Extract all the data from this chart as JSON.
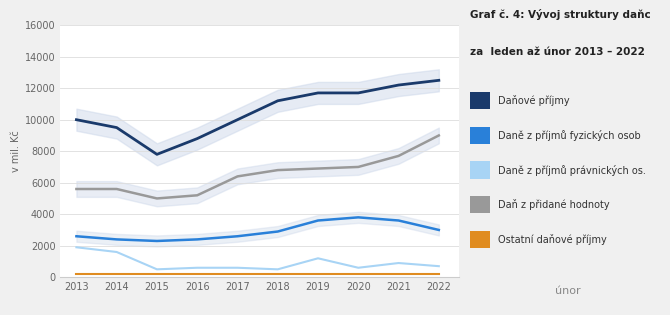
{
  "years": [
    2013,
    2014,
    2015,
    2016,
    2017,
    2018,
    2019,
    2020,
    2021,
    2022
  ],
  "danove_prijmy": [
    10000,
    9500,
    7800,
    8800,
    10000,
    11200,
    11700,
    11700,
    12200,
    12500
  ],
  "dane_fyzicke": [
    2600,
    2400,
    2300,
    2400,
    2600,
    2900,
    3600,
    3800,
    3600,
    3000
  ],
  "dane_pravnicke": [
    1900,
    1600,
    500,
    600,
    600,
    500,
    1200,
    600,
    900,
    700
  ],
  "dan_pridana_hodnota": [
    5600,
    5600,
    5000,
    5200,
    6400,
    6800,
    6900,
    7000,
    7700,
    9000
  ],
  "ostatni": [
    200,
    200,
    200,
    200,
    200,
    200,
    200,
    200,
    200,
    200
  ],
  "colors": {
    "danove_prijmy": "#1a3a6b",
    "dane_fyzicke": "#2980d9",
    "dane_pravnicke": "#a8d4f5",
    "dan_pridana_hodnota": "#999999",
    "ostatni": "#e08c20"
  },
  "legend_labels": [
    "Daňové příjmy",
    "Daně z příjmů fyzických osob",
    "Daně z příjmů právnických os.",
    "Daň z přidané hodnoty",
    "Ostatní daňové příjmy"
  ],
  "title_line1": "Graf č. 4: Vývoj struktury daňc",
  "title_line2": "za  leden až únor 2013 – 2022",
  "ylabel": "v mil. Kč",
  "ylim": [
    0,
    16000
  ],
  "yticks": [
    0,
    2000,
    4000,
    6000,
    8000,
    10000,
    12000,
    14000,
    16000
  ],
  "footer_text": "únor",
  "chart_bg": "#f0f0f0",
  "plot_bg": "#ffffff",
  "shadow_color": "#c8d4e8"
}
